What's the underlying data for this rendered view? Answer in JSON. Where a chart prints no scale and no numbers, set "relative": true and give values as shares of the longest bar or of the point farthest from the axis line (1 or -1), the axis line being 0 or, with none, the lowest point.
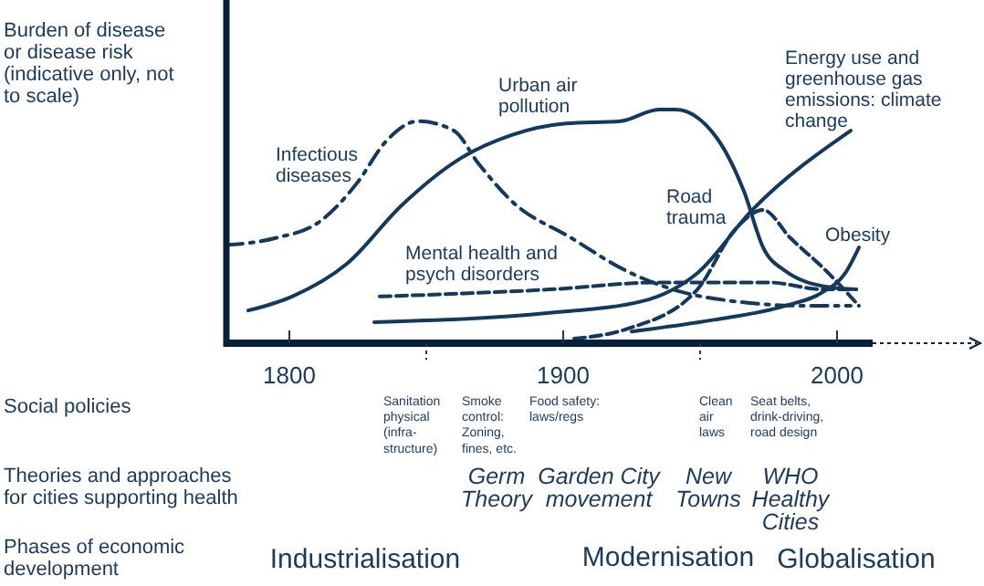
{
  "chart_data": {
    "type": "line",
    "relative": true,
    "ylabel": "Burden of disease\nor disease risk\n(indicative only, not\nto scale)",
    "tick_labels": "x",
    "grid": false,
    "marker": "none",
    "xlim": [
      1777,
      2013
    ],
    "xticks": [
      1800,
      {
        "value": 1850,
        "label": null
      },
      1900,
      {
        "value": 1950,
        "label": null
      },
      2000
    ],
    "series": [
      {
        "name": "Infectious\ndiseases",
        "color": "#14395d",
        "line_style": "dashdot",
        "x": [
          1777,
          1795,
          1811,
          1825,
          1835,
          1847,
          1860,
          1869,
          1881,
          1903,
          1923,
          1943,
          1962,
          1989,
          2005
        ],
        "values": [
          0.42,
          0.45,
          0.52,
          0.69,
          0.86,
          0.95,
          0.91,
          0.77,
          0.61,
          0.45,
          0.31,
          0.22,
          0.18,
          0.16,
          0.16
        ]
      },
      {
        "name": "Urban air\npollution",
        "color": "#14395d",
        "line_style": "solid",
        "x": [
          1785,
          1801,
          1821,
          1841,
          1861,
          1881,
          1901,
          1921,
          1935,
          1941,
          1956,
          1966,
          1973,
          1981,
          1997,
          2007
        ],
        "values": [
          0.14,
          0.2,
          0.34,
          0.59,
          0.78,
          0.89,
          0.94,
          0.95,
          1,
          1,
          0.88,
          0.65,
          0.41,
          0.31,
          0.24,
          0.23
        ]
      },
      {
        "name": "Mental health and\npsych disorders",
        "color": "#14395d",
        "line_style": "dashed",
        "x": [
          1833,
          1895,
          1935,
          1975,
          1995,
          2007
        ],
        "values": [
          0.2,
          0.23,
          0.26,
          0.26,
          0.23,
          0.23
        ]
      },
      {
        "name": "Road\ntrauma",
        "color": "#14395d",
        "line_style": "dashed",
        "x": [
          1904,
          1923,
          1949,
          1963,
          1973,
          1983,
          1996,
          2008
        ],
        "values": [
          0.02,
          0.06,
          0.23,
          0.49,
          0.57,
          0.45,
          0.31,
          0.16
        ]
      },
      {
        "name": "Energy use and\ngreenhouse gas\nemissions: climate\nchange",
        "color": "#14395d",
        "line_style": "solid",
        "x": [
          1831,
          1895,
          1929,
          1949,
          1969,
          2005
        ],
        "values": [
          0.09,
          0.13,
          0.18,
          0.3,
          0.57,
          0.91
        ]
      },
      {
        "name": "Obesity",
        "color": "#14395d",
        "line_style": "solid",
        "x": [
          1925,
          1955,
          1981,
          1995,
          2003,
          2008
        ],
        "values": [
          0.05,
          0.1,
          0.16,
          0.22,
          0.3,
          0.41
        ]
      }
    ],
    "annotations": [
      "Social policies",
      "Theories and approaches\nfor cities supporting health",
      "Phases  of economic\ndevelopment",
      "Sanitation\nphysical\n(infra-\nstructure)",
      "Smoke\ncontrol:\nZoning,\nfines, etc.",
      "Food safety:\nlaws/regs",
      "Clean\nair\nlaws",
      "Seat belts,\ndrink-driving,\nroad design",
      "Germ\nTheory",
      "Garden City\nmovement",
      "New\nTowns",
      "WHO\nHealthy\nCities",
      "Industrialisation",
      "Modernisation",
      "Globalisation"
    ]
  }
}
